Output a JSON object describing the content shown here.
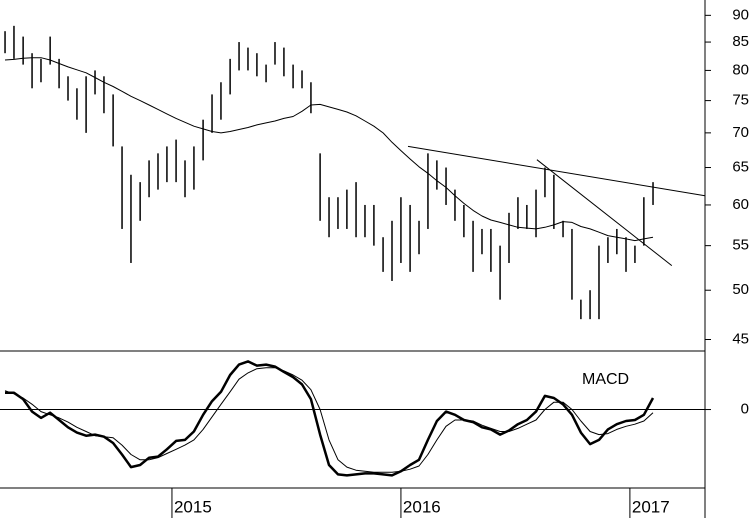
{
  "chart_data": [
    {
      "type": "ohlc",
      "log_scale": true,
      "color": "#000000",
      "ylim": [
        44,
        93
      ],
      "yticks": [
        45,
        50,
        55,
        60,
        65,
        70,
        75,
        80,
        85,
        90
      ],
      "xlim": [
        2014.249,
        2017.328
      ],
      "x": [
        2014.271,
        2014.31,
        2014.35,
        2014.389,
        2014.428,
        2014.468,
        2014.507,
        2014.546,
        2014.585,
        2014.625,
        2014.664,
        2014.703,
        2014.743,
        2014.782,
        2014.821,
        2014.861,
        2014.9,
        2014.939,
        2014.978,
        2015.018,
        2015.057,
        2015.096,
        2015.136,
        2015.175,
        2015.214,
        2015.254,
        2015.293,
        2015.332,
        2015.371,
        2015.411,
        2015.45,
        2015.489,
        2015.529,
        2015.568,
        2015.607,
        2015.647,
        2015.686,
        2015.725,
        2015.764,
        2015.804,
        2015.843,
        2015.882,
        2015.922,
        2015.961,
        2016.0,
        2016.04,
        2016.079,
        2016.118,
        2016.157,
        2016.197,
        2016.236,
        2016.275,
        2016.315,
        2016.354,
        2016.393,
        2016.433,
        2016.472,
        2016.511,
        2016.55,
        2016.59,
        2016.629,
        2016.668,
        2016.708,
        2016.747,
        2016.786,
        2016.826,
        2016.865,
        2016.904,
        2016.943,
        2016.983,
        2017.022,
        2017.061,
        2017.101
      ],
      "high": [
        87,
        88,
        86,
        83,
        82,
        86,
        82,
        79,
        77,
        79,
        80,
        79,
        76,
        68,
        64,
        63,
        66,
        67,
        68,
        69,
        66,
        68,
        72,
        76,
        78,
        82,
        85,
        84,
        83,
        81,
        85,
        84,
        81,
        80,
        78,
        67,
        61,
        61,
        62,
        63,
        60,
        60,
        56,
        58,
        61,
        60,
        58,
        67,
        66,
        65,
        62,
        60,
        58,
        57,
        57,
        55,
        59,
        61,
        60,
        62,
        65,
        64,
        58,
        57,
        49,
        50,
        55,
        56,
        57,
        56,
        55,
        61,
        63
      ],
      "low": [
        83,
        82,
        81,
        77,
        78,
        81,
        77,
        75,
        72,
        70,
        76,
        73,
        68,
        57,
        53,
        58,
        61,
        62,
        63,
        63,
        61,
        62,
        66,
        70,
        72,
        76,
        80,
        80,
        79,
        78,
        81,
        79,
        77,
        77,
        73,
        58,
        56,
        57,
        57,
        56,
        56,
        55,
        52,
        51,
        53,
        52,
        54,
        57,
        62,
        60,
        58,
        56,
        52,
        54,
        52,
        49,
        53,
        57,
        57,
        56,
        61,
        57,
        56,
        49,
        47,
        47,
        47,
        53,
        54,
        52,
        53,
        55,
        60
      ],
      "moving_average": [
        81.8,
        81.9,
        82.1,
        82.2,
        82.2,
        81.8,
        81.2,
        80.6,
        80.1,
        79.6,
        78.8,
        78.0,
        77.3,
        76.5,
        75.7,
        75.0,
        74.3,
        73.6,
        72.9,
        72.2,
        71.6,
        71.0,
        70.6,
        70.2,
        70.0,
        70.2,
        70.5,
        70.8,
        71.2,
        71.5,
        71.8,
        72.2,
        72.5,
        73.3,
        74.3,
        74.4,
        74.0,
        73.6,
        73.2,
        72.6,
        71.8,
        71.0,
        70.0,
        68.6,
        67.4,
        66.2,
        65.1,
        64.2,
        63.2,
        62.3,
        61.2,
        60.2,
        59.3,
        58.6,
        58.1,
        57.8,
        57.5,
        57.2,
        57.1,
        57.0,
        57.2,
        57.5,
        57.9,
        57.8,
        57.3,
        57.0,
        56.6,
        56.2,
        56.0,
        55.8,
        55.6,
        55.8,
        56.0
      ],
      "trendlines": [
        {
          "x": [
            2016.031,
            2017.328
          ],
          "values": [
            68.0,
            61.2
          ]
        },
        {
          "x": [
            2016.594,
            2017.183
          ],
          "values": [
            66.1,
            52.7
          ]
        }
      ]
    },
    {
      "type": "line",
      "title": "MACD",
      "color": "#000000",
      "ylim": [
        -7.5,
        5.5
      ],
      "yticks": [
        0
      ],
      "xlim": [
        2014.249,
        2017.328
      ],
      "xticks": [
        2015,
        2016,
        2017
      ],
      "x": [
        2014.271,
        2014.31,
        2014.35,
        2014.389,
        2014.428,
        2014.468,
        2014.507,
        2014.546,
        2014.585,
        2014.625,
        2014.664,
        2014.703,
        2014.743,
        2014.782,
        2014.821,
        2014.861,
        2014.9,
        2014.939,
        2014.978,
        2015.018,
        2015.057,
        2015.096,
        2015.136,
        2015.175,
        2015.214,
        2015.254,
        2015.293,
        2015.332,
        2015.371,
        2015.411,
        2015.45,
        2015.489,
        2015.529,
        2015.568,
        2015.607,
        2015.647,
        2015.686,
        2015.725,
        2015.764,
        2015.804,
        2015.843,
        2015.882,
        2015.922,
        2015.961,
        2016.0,
        2016.04,
        2016.079,
        2016.118,
        2016.157,
        2016.197,
        2016.236,
        2016.275,
        2016.315,
        2016.354,
        2016.393,
        2016.433,
        2016.472,
        2016.511,
        2016.55,
        2016.59,
        2016.629,
        2016.668,
        2016.708,
        2016.747,
        2016.786,
        2016.826,
        2016.865,
        2016.904,
        2016.943,
        2016.983,
        2017.022,
        2017.061,
        2017.101
      ],
      "macd": [
        1.6,
        1.6,
        1.0,
        -0.2,
        -0.8,
        -0.3,
        -1.0,
        -1.7,
        -2.2,
        -2.5,
        -2.4,
        -2.6,
        -3.2,
        -4.3,
        -5.5,
        -5.3,
        -4.6,
        -4.5,
        -3.8,
        -3.0,
        -2.9,
        -2.1,
        -0.5,
        0.8,
        1.7,
        3.3,
        4.3,
        4.6,
        4.2,
        4.3,
        4.1,
        3.6,
        3.1,
        2.4,
        1.0,
        -2.4,
        -5.3,
        -6.2,
        -6.3,
        -6.2,
        -6.1,
        -6.1,
        -6.2,
        -6.3,
        -5.9,
        -5.3,
        -4.8,
        -2.9,
        -1.1,
        -0.2,
        -0.5,
        -1.0,
        -1.2,
        -1.7,
        -1.9,
        -2.4,
        -2.0,
        -1.4,
        -1.0,
        -0.2,
        1.3,
        1.1,
        0.5,
        -0.5,
        -2.2,
        -3.3,
        -2.9,
        -1.9,
        -1.4,
        -1.1,
        -1.0,
        -0.5,
        1.1
      ],
      "signal": [
        1.8,
        1.5,
        1.1,
        0.5,
        -0.2,
        -0.5,
        -0.8,
        -1.2,
        -1.7,
        -2.1,
        -2.5,
        -2.6,
        -2.7,
        -3.4,
        -4.3,
        -4.8,
        -4.8,
        -4.6,
        -4.2,
        -3.8,
        -3.4,
        -2.9,
        -1.9,
        -0.7,
        0.5,
        1.7,
        2.9,
        3.5,
        3.9,
        4.0,
        4.0,
        3.7,
        3.3,
        2.8,
        1.9,
        0.0,
        -2.9,
        -4.8,
        -5.5,
        -5.8,
        -5.9,
        -6.0,
        -6.0,
        -6.0,
        -5.9,
        -5.7,
        -5.4,
        -4.3,
        -2.9,
        -1.6,
        -1.0,
        -1.0,
        -1.1,
        -1.5,
        -1.8,
        -2.1,
        -2.1,
        -1.8,
        -1.4,
        -1.0,
        0.0,
        0.7,
        0.7,
        0.0,
        -1.1,
        -2.1,
        -2.4,
        -2.3,
        -1.9,
        -1.6,
        -1.4,
        -1.1,
        -0.3
      ]
    }
  ]
}
